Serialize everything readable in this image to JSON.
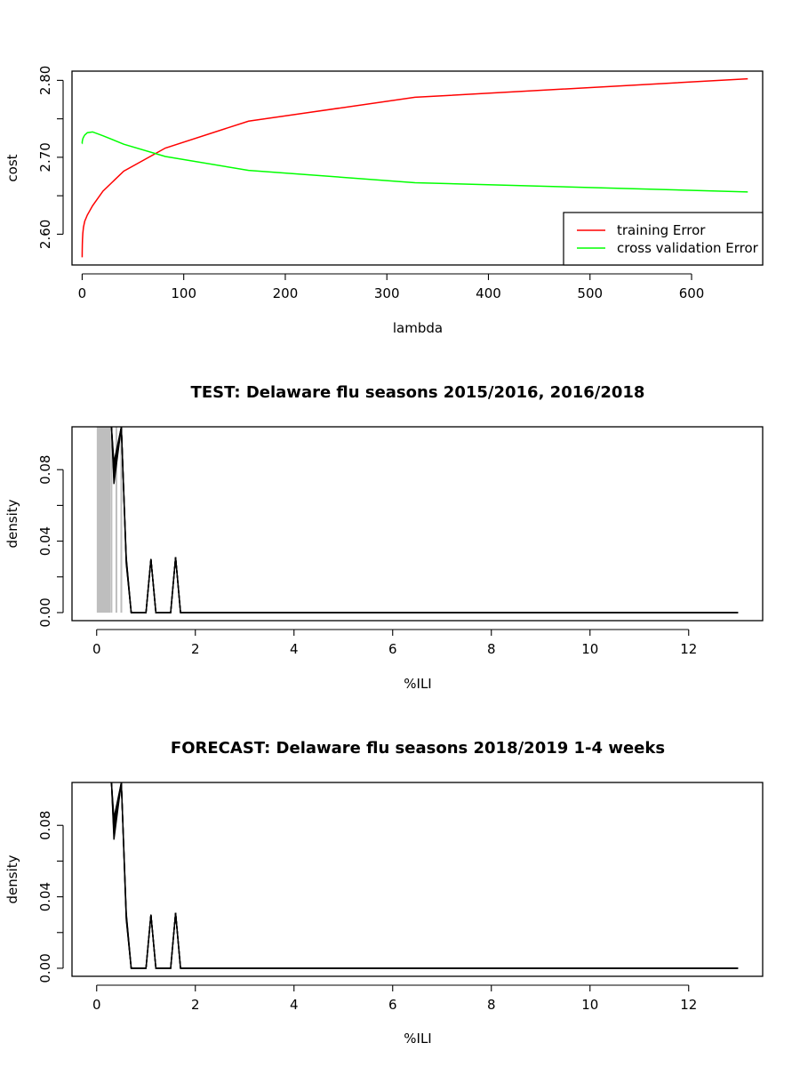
{
  "chart_data": [
    {
      "type": "line",
      "title": "",
      "xlabel": "lambda",
      "ylabel": "cost",
      "xlim": [
        -10,
        670
      ],
      "ylim": [
        2.56,
        2.812
      ],
      "xticks": [
        0,
        100,
        200,
        300,
        400,
        500,
        600
      ],
      "yticks": [
        2.6,
        2.7,
        2.8
      ],
      "ytick_labels": [
        "2.60",
        "2.70",
        "2.80"
      ],
      "legend_placement": "bottom-right",
      "series": [
        {
          "name": "training Error",
          "color": "#ff0000",
          "x": [
            0,
            0.01,
            0.02,
            0.04,
            0.08,
            0.16,
            0.32,
            0.64,
            1.28,
            2.56,
            5.12,
            10.24,
            20.48,
            40.96,
            81.92,
            163.84,
            327.68,
            655.36
          ],
          "y": [
            2.57,
            2.571,
            2.573,
            2.576,
            2.58,
            2.586,
            2.593,
            2.601,
            2.609,
            2.617,
            2.625,
            2.637,
            2.656,
            2.682,
            2.712,
            2.747,
            2.778,
            2.802
          ]
        },
        {
          "name": "cross validation Error",
          "color": "#00ff00",
          "x": [
            0,
            0.01,
            0.02,
            0.04,
            0.08,
            0.16,
            0.32,
            0.64,
            1.28,
            2.56,
            5.12,
            10.24,
            20.48,
            40.96,
            81.92,
            163.84,
            327.68,
            655.36
          ],
          "y": [
            2.718,
            2.718,
            2.719,
            2.719,
            2.72,
            2.721,
            2.722,
            2.724,
            2.726,
            2.729,
            2.732,
            2.733,
            2.728,
            2.717,
            2.701,
            2.683,
            2.667,
            2.655
          ]
        }
      ]
    },
    {
      "type": "line",
      "title": "TEST: Delaware  flu seasons 2015/2016, 2016/2018",
      "xlabel": "%ILI",
      "ylabel": "density",
      "xlim": [
        -0.5,
        13.5
      ],
      "ylim": [
        -0.0045,
        0.104
      ],
      "xticks": [
        0,
        2,
        4,
        6,
        8,
        10,
        12
      ],
      "yticks": [
        0.0,
        0.04,
        0.08
      ],
      "ytick_labels": [
        "0.00",
        "0.04",
        "0.08"
      ],
      "observed_values": [
        0.02,
        0.05,
        0.08,
        0.11,
        0.14,
        0.17,
        0.2,
        0.23,
        0.26,
        0.3,
        0.4,
        0.5
      ],
      "observed_color": "#bebebe",
      "forecast_color": "#000000",
      "curves": [
        {
          "x": [
            0.3,
            0.35,
            0.5,
            0.6,
            0.7,
            1.0,
            1.1,
            1.2,
            1.5,
            1.6,
            1.7,
            2.0,
            13.0
          ],
          "y": [
            0.104,
            0.072,
            0.104,
            0.027,
            0.0,
            0.0,
            0.03,
            0.0,
            0.0,
            0.031,
            0.0,
            0.0,
            0.0
          ]
        },
        {
          "x": [
            0.3,
            0.35,
            0.5,
            0.6,
            0.7,
            1.0,
            1.1,
            1.2,
            1.5,
            1.6,
            1.7,
            2.0,
            13.0
          ],
          "y": [
            0.104,
            0.075,
            0.104,
            0.028,
            0.0,
            0.0,
            0.03,
            0.0,
            0.0,
            0.031,
            0.0,
            0.0,
            0.0
          ]
        },
        {
          "x": [
            0.3,
            0.35,
            0.5,
            0.6,
            0.7,
            1.0,
            1.1,
            1.2,
            1.5,
            1.6,
            1.7,
            2.0,
            13.0
          ],
          "y": [
            0.104,
            0.078,
            0.104,
            0.029,
            0.0,
            0.0,
            0.03,
            0.0,
            0.0,
            0.031,
            0.0,
            0.0,
            0.0
          ]
        },
        {
          "x": [
            0.3,
            0.35,
            0.5,
            0.6,
            0.7,
            1.0,
            1.1,
            1.2,
            1.5,
            1.6,
            1.7,
            2.0,
            13.0
          ],
          "y": [
            0.104,
            0.081,
            0.104,
            0.03,
            0.0,
            0.0,
            0.03,
            0.0,
            0.0,
            0.031,
            0.0,
            0.0,
            0.0
          ]
        },
        {
          "x": [
            0.3,
            0.35,
            0.5,
            0.6,
            0.7,
            1.0,
            1.1,
            1.2,
            1.5,
            1.6,
            1.7,
            2.0,
            13.0
          ],
          "y": [
            0.104,
            0.084,
            0.104,
            0.031,
            0.0,
            0.0,
            0.03,
            0.0,
            0.0,
            0.031,
            0.0,
            0.0,
            0.0
          ]
        }
      ]
    },
    {
      "type": "line",
      "title": "FORECAST: Delaware flu seasons 2018/2019 1-4 weeks",
      "xlabel": "%ILI",
      "ylabel": "density",
      "xlim": [
        -0.5,
        13.5
      ],
      "ylim": [
        -0.0045,
        0.104
      ],
      "xticks": [
        0,
        2,
        4,
        6,
        8,
        10,
        12
      ],
      "yticks": [
        0.0,
        0.04,
        0.08
      ],
      "ytick_labels": [
        "0.00",
        "0.04",
        "0.08"
      ],
      "observed_values": [],
      "observed_color": "#bebebe",
      "forecast_color": "#000000",
      "curves": [
        {
          "x": [
            0.3,
            0.35,
            0.5,
            0.6,
            0.7,
            1.0,
            1.1,
            1.2,
            1.5,
            1.6,
            1.7,
            2.0,
            13.0
          ],
          "y": [
            0.104,
            0.072,
            0.104,
            0.027,
            0.0,
            0.0,
            0.03,
            0.0,
            0.0,
            0.031,
            0.0,
            0.0,
            0.0
          ]
        },
        {
          "x": [
            0.3,
            0.35,
            0.5,
            0.6,
            0.7,
            1.0,
            1.1,
            1.2,
            1.5,
            1.6,
            1.7,
            2.0,
            13.0
          ],
          "y": [
            0.104,
            0.075,
            0.104,
            0.028,
            0.0,
            0.0,
            0.03,
            0.0,
            0.0,
            0.031,
            0.0,
            0.0,
            0.0
          ]
        },
        {
          "x": [
            0.3,
            0.35,
            0.5,
            0.6,
            0.7,
            1.0,
            1.1,
            1.2,
            1.5,
            1.6,
            1.7,
            2.0,
            13.0
          ],
          "y": [
            0.104,
            0.078,
            0.104,
            0.029,
            0.0,
            0.0,
            0.03,
            0.0,
            0.0,
            0.031,
            0.0,
            0.0,
            0.0
          ]
        },
        {
          "x": [
            0.3,
            0.35,
            0.5,
            0.6,
            0.7,
            1.0,
            1.1,
            1.2,
            1.5,
            1.6,
            1.7,
            2.0,
            13.0
          ],
          "y": [
            0.104,
            0.081,
            0.104,
            0.03,
            0.0,
            0.0,
            0.03,
            0.0,
            0.0,
            0.031,
            0.0,
            0.0,
            0.0
          ]
        },
        {
          "x": [
            0.3,
            0.35,
            0.5,
            0.6,
            0.7,
            1.0,
            1.1,
            1.2,
            1.5,
            1.6,
            1.7,
            2.0,
            13.0
          ],
          "y": [
            0.104,
            0.084,
            0.104,
            0.031,
            0.0,
            0.0,
            0.03,
            0.0,
            0.0,
            0.031,
            0.0,
            0.0,
            0.0
          ]
        }
      ]
    }
  ]
}
